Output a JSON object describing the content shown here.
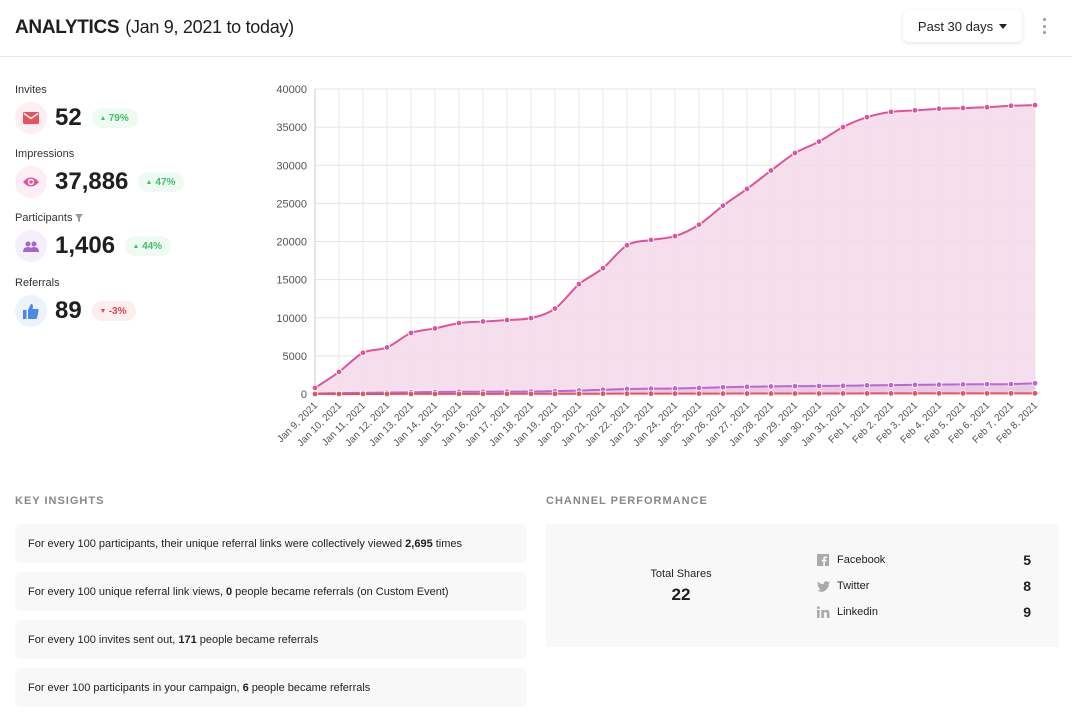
{
  "header": {
    "title": "ANALYTICS",
    "subtitle": "(Jan 9, 2021 to today)",
    "range": "Past 30 days",
    "more_icon": "more-vertical-icon"
  },
  "metrics": [
    {
      "label": "Invites",
      "value": "52",
      "change": "79%",
      "trend": "up",
      "icon": "mail-icon",
      "color": "#e8525f",
      "bg": "#fdeef0"
    },
    {
      "label": "Impressions",
      "value": "37,886",
      "change": "47%",
      "trend": "up",
      "icon": "eye-icon",
      "color": "#e0529c",
      "bg": "#fdeef5"
    },
    {
      "label": "Participants",
      "value": "1,406",
      "change": "44%",
      "trend": "up",
      "icon": "people-icon",
      "color": "#a466d1",
      "bg": "#f5effb",
      "filter_icon": "filter-icon"
    },
    {
      "label": "Referrals",
      "value": "89",
      "change": "-3%",
      "trend": "down",
      "icon": "thumbs-up-icon",
      "color": "#4a89e8",
      "bg": "#ecf3fd"
    }
  ],
  "chart_data": {
    "type": "area",
    "ylim": [
      0,
      40000
    ],
    "yticks": [
      0,
      5000,
      10000,
      15000,
      20000,
      25000,
      30000,
      35000,
      40000
    ],
    "grid": true,
    "x": [
      "Jan 9, 2021",
      "Jan 10, 2021",
      "Jan 11, 2021",
      "Jan 12, 2021",
      "Jan 13, 2021",
      "Jan 14, 2021",
      "Jan 15, 2021",
      "Jan 16, 2021",
      "Jan 17, 2021",
      "Jan 18, 2021",
      "Jan 19, 2021",
      "Jan 20, 2021",
      "Jan 21, 2021",
      "Jan 22, 2021",
      "Jan 23, 2021",
      "Jan 24, 2021",
      "Jan 25, 2021",
      "Jan 26, 2021",
      "Jan 27, 2021",
      "Jan 28, 2021",
      "Jan 29, 2021",
      "Jan 30, 2021",
      "Jan 31, 2021",
      "Feb 1, 2021",
      "Feb 2, 2021",
      "Feb 3, 2021",
      "Feb 4, 2021",
      "Feb 5, 2021",
      "Feb 6, 2021",
      "Feb 7, 2021",
      "Feb 8, 2021"
    ],
    "series": [
      {
        "color": "#e0529c",
        "fill": "#f5d9ea",
        "values": [
          800,
          2900,
          5400,
          6100,
          8000,
          8600,
          9300,
          9500,
          9700,
          9950,
          11200,
          14400,
          16500,
          19500,
          20200,
          20700,
          22200,
          24700,
          26900,
          29300,
          31600,
          33100,
          35000,
          36300,
          37000,
          37200,
          37400,
          37500,
          37600,
          37800,
          37886
        ]
      },
      {
        "color": "#b86ad0",
        "fill": "#e6c4e6",
        "values": [
          60,
          120,
          150,
          180,
          220,
          260,
          290,
          300,
          310,
          330,
          370,
          450,
          560,
          650,
          700,
          720,
          800,
          880,
          950,
          990,
          1030,
          1050,
          1080,
          1130,
          1160,
          1200,
          1230,
          1260,
          1280,
          1300,
          1406
        ]
      },
      {
        "color": "#e8525f",
        "fill": "none",
        "values": [
          0,
          2,
          5,
          8,
          10,
          14,
          18,
          21,
          25,
          28,
          32,
          36,
          40,
          44,
          48,
          51,
          54,
          57,
          60,
          63,
          66,
          69,
          72,
          75,
          78,
          80,
          82,
          84,
          86,
          88,
          89
        ]
      }
    ]
  },
  "insights": {
    "title": "KEY INSIGHTS",
    "items": [
      {
        "pre": "For every 100 participants, their unique referral links were collectively viewed",
        "bold": "2,695",
        "post": "times"
      },
      {
        "pre": "For every 100 unique referral link views,",
        "bold": "0",
        "post": "people became referrals (on Custom Event)"
      },
      {
        "pre": "For every 100 invites sent out,",
        "bold": "171",
        "post": "people became referrals"
      },
      {
        "pre": "For ever 100 participants in your campaign,",
        "bold": "6",
        "post": "people became referrals"
      }
    ]
  },
  "channel": {
    "title": "CHANNEL PERFORMANCE",
    "total_label": "Total Shares",
    "total_value": "22",
    "items": [
      {
        "name": "Facebook",
        "value": "5",
        "icon": "facebook-icon"
      },
      {
        "name": "Twitter",
        "value": "8",
        "icon": "twitter-icon"
      },
      {
        "name": "Linkedin",
        "value": "9",
        "icon": "linkedin-icon"
      }
    ]
  }
}
